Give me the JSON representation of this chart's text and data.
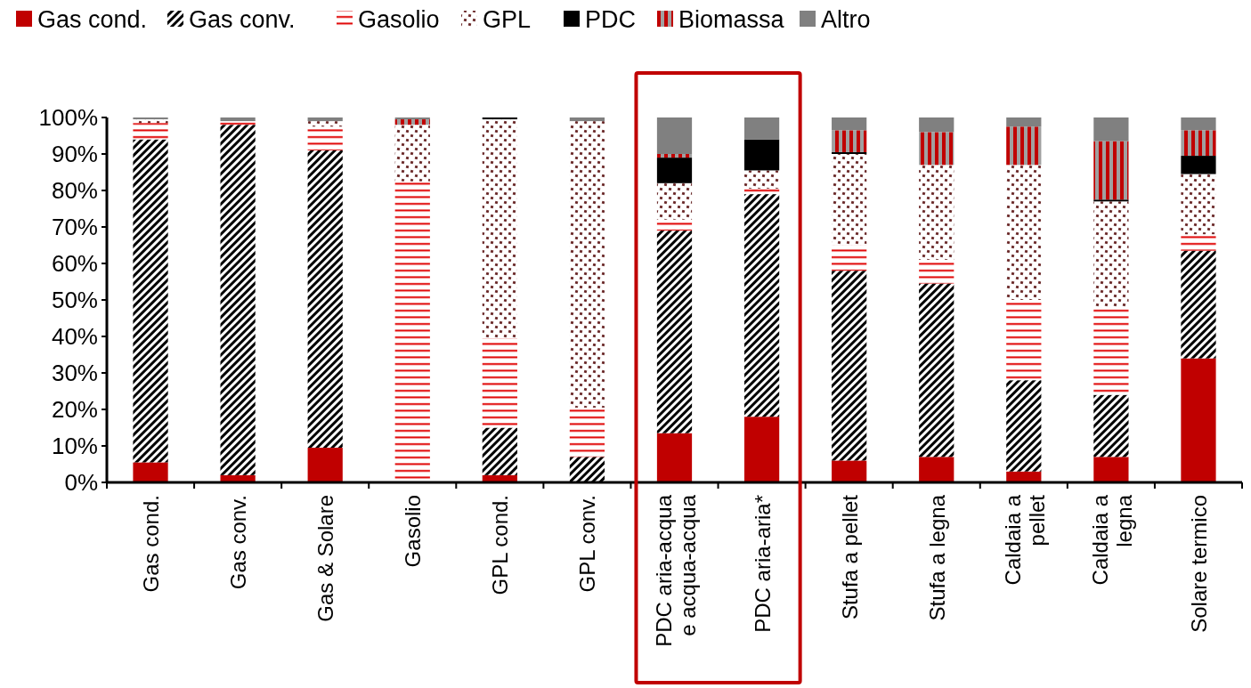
{
  "chart_data": {
    "type": "bar",
    "stacked": true,
    "legend": "top",
    "grid": false,
    "categories": [
      "Gas cond.",
      "Gas conv.",
      "Gas & Solare",
      "Gasolio",
      "GPL cond.",
      "GPL conv.",
      "PDC aria-acqua e acqua-acqua",
      "PDC aria-aria*",
      "Stufa a pellet",
      "Stufa a legna",
      "Caldaia a pellet",
      "Caldaia a legna",
      "Solare termico"
    ],
    "ylim": [
      0,
      100
    ],
    "yticks": [
      {
        "value": 0,
        "label": "0%"
      },
      {
        "value": 10,
        "label": "10%"
      },
      {
        "value": 20,
        "label": "20%"
      },
      {
        "value": 30,
        "label": "30%"
      },
      {
        "value": 40,
        "label": "40%"
      },
      {
        "value": 50,
        "label": "50%"
      },
      {
        "value": 60,
        "label": "60%"
      },
      {
        "value": 70,
        "label": "70%"
      },
      {
        "value": 80,
        "label": "80%"
      },
      {
        "value": 90,
        "label": "90%"
      },
      {
        "value": 100,
        "label": "100%"
      }
    ],
    "series": [
      {
        "name": "Gas cond.",
        "color": "#c00000",
        "values": [
          5.5,
          2,
          9.5,
          0,
          2,
          0,
          13.5,
          18,
          6,
          7,
          3,
          7,
          34
        ]
      },
      {
        "name": "Gas conv.",
        "color": "#000000",
        "values": [
          88.5,
          96,
          81.5,
          0,
          13,
          7,
          55.5,
          61,
          52,
          47.5,
          25,
          17,
          29.5
        ]
      },
      {
        "name": "Gasolio",
        "color": "#e00000",
        "values": [
          4.5,
          1,
          6.5,
          82.5,
          24.5,
          13.5,
          3,
          1.5,
          7,
          6.5,
          22,
          24,
          4.5
        ]
      },
      {
        "name": "GPL",
        "color": "#6b2a2a",
        "values": [
          1,
          0,
          1.5,
          15.5,
          60,
          78.5,
          10,
          5,
          25,
          26,
          37,
          29,
          16.5
        ]
      },
      {
        "name": "PDC",
        "color": "#000000",
        "values": [
          0,
          0,
          0,
          0,
          0.5,
          0,
          7,
          8.5,
          0.5,
          0,
          0,
          0.5,
          5
        ]
      },
      {
        "name": "Biomassa",
        "color": "#c00000",
        "values": [
          0,
          0,
          0,
          1.5,
          0,
          0,
          1,
          0,
          6,
          9,
          10.5,
          16,
          7
        ]
      },
      {
        "name": "Altro",
        "color": "#808080",
        "values": [
          0.5,
          1,
          1,
          0.5,
          0,
          1,
          10,
          6,
          3.5,
          4,
          2.5,
          6.5,
          3.5
        ]
      }
    ]
  }
}
